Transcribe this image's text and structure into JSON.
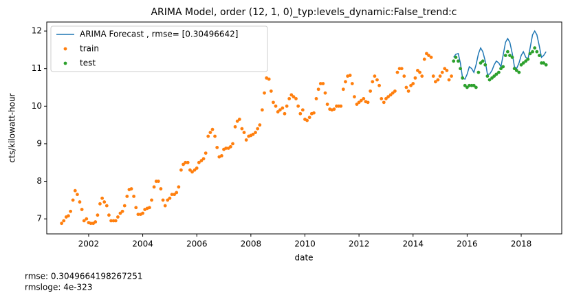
{
  "chart_data": {
    "type": "line",
    "title": "ARIMA Model, order (12, 1, 0)_typ:levels_dynamic:False_trend:c",
    "xlabel": "date",
    "ylabel": "cts/kilowatt-hour",
    "xlim": [
      2000.45,
      2019.5
    ],
    "ylim": [
      6.6,
      12.24
    ],
    "xticks": [
      2002,
      2004,
      2006,
      2008,
      2010,
      2012,
      2014,
      2016,
      2018
    ],
    "yticks": [
      7,
      8,
      9,
      10,
      11,
      12
    ],
    "legend": "upper left",
    "annotations": [
      "rmse: 0.3049664198267251",
      "rmsloge: 4e-323"
    ],
    "series": [
      {
        "name": "ARIMA Forecast , rmse= [0.30496642]",
        "color": "#1f77b4",
        "style": "line",
        "x": [
          2015.5,
          2015.58,
          2015.67,
          2015.75,
          2015.83,
          2015.92,
          2016.0,
          2016.08,
          2016.17,
          2016.25,
          2016.33,
          2016.42,
          2016.5,
          2016.58,
          2016.67,
          2016.75,
          2016.83,
          2016.92,
          2017.0,
          2017.08,
          2017.17,
          2017.25,
          2017.33,
          2017.42,
          2017.5,
          2017.58,
          2017.67,
          2017.75,
          2017.83,
          2017.92,
          2018.0,
          2018.08,
          2018.17,
          2018.25,
          2018.33,
          2018.42,
          2018.5,
          2018.58,
          2018.67,
          2018.75,
          2018.83,
          2018.92
        ],
        "values": [
          11.3,
          11.38,
          11.4,
          11.15,
          10.75,
          10.72,
          10.85,
          11.05,
          11.0,
          10.9,
          11.1,
          11.4,
          11.55,
          11.45,
          11.2,
          10.85,
          10.85,
          10.95,
          11.1,
          11.2,
          11.15,
          11.05,
          11.35,
          11.7,
          11.8,
          11.7,
          11.4,
          11.05,
          11.0,
          11.15,
          11.35,
          11.45,
          11.3,
          11.25,
          11.55,
          11.9,
          12.0,
          11.9,
          11.6,
          11.3,
          11.35,
          11.45
        ]
      },
      {
        "name": "train",
        "color": "#ff7f0e",
        "style": "points",
        "x": [
          2001.0,
          2001.08,
          2001.17,
          2001.25,
          2001.33,
          2001.42,
          2001.5,
          2001.58,
          2001.67,
          2001.75,
          2001.83,
          2001.92,
          2002.0,
          2002.08,
          2002.17,
          2002.25,
          2002.33,
          2002.42,
          2002.5,
          2002.58,
          2002.67,
          2002.75,
          2002.83,
          2002.92,
          2003.0,
          2003.08,
          2003.17,
          2003.25,
          2003.33,
          2003.42,
          2003.5,
          2003.58,
          2003.67,
          2003.75,
          2003.83,
          2003.92,
          2004.0,
          2004.08,
          2004.17,
          2004.25,
          2004.33,
          2004.42,
          2004.5,
          2004.58,
          2004.67,
          2004.75,
          2004.83,
          2004.92,
          2005.0,
          2005.08,
          2005.17,
          2005.25,
          2005.33,
          2005.42,
          2005.5,
          2005.58,
          2005.67,
          2005.75,
          2005.83,
          2005.92,
          2006.0,
          2006.08,
          2006.17,
          2006.25,
          2006.33,
          2006.42,
          2006.5,
          2006.58,
          2006.67,
          2006.75,
          2006.83,
          2006.92,
          2007.0,
          2007.08,
          2007.17,
          2007.25,
          2007.33,
          2007.42,
          2007.5,
          2007.58,
          2007.67,
          2007.75,
          2007.83,
          2007.92,
          2008.0,
          2008.08,
          2008.17,
          2008.25,
          2008.33,
          2008.42,
          2008.5,
          2008.58,
          2008.67,
          2008.75,
          2008.83,
          2008.92,
          2009.0,
          2009.08,
          2009.17,
          2009.25,
          2009.33,
          2009.42,
          2009.5,
          2009.58,
          2009.67,
          2009.75,
          2009.83,
          2009.92,
          2010.0,
          2010.08,
          2010.17,
          2010.25,
          2010.33,
          2010.42,
          2010.5,
          2010.58,
          2010.67,
          2010.75,
          2010.83,
          2010.92,
          2011.0,
          2011.08,
          2011.17,
          2011.25,
          2011.33,
          2011.42,
          2011.5,
          2011.58,
          2011.67,
          2011.75,
          2011.83,
          2011.92,
          2012.0,
          2012.08,
          2012.17,
          2012.25,
          2012.33,
          2012.42,
          2012.5,
          2012.58,
          2012.67,
          2012.75,
          2012.83,
          2012.92,
          2013.0,
          2013.08,
          2013.17,
          2013.25,
          2013.33,
          2013.42,
          2013.5,
          2013.58,
          2013.67,
          2013.75,
          2013.83,
          2013.92,
          2014.0,
          2014.08,
          2014.17,
          2014.25,
          2014.33,
          2014.42,
          2014.5,
          2014.58,
          2014.67,
          2014.75,
          2014.83,
          2014.92,
          2015.0,
          2015.08,
          2015.17,
          2015.25,
          2015.33,
          2015.42
        ],
        "values": [
          6.88,
          6.95,
          7.05,
          7.08,
          7.2,
          7.5,
          7.75,
          7.65,
          7.45,
          7.25,
          6.95,
          7.0,
          6.9,
          6.88,
          6.88,
          6.92,
          7.1,
          7.4,
          7.55,
          7.45,
          7.35,
          7.1,
          6.95,
          6.95,
          6.95,
          7.05,
          7.15,
          7.2,
          7.35,
          7.6,
          7.78,
          7.8,
          7.6,
          7.3,
          7.12,
          7.12,
          7.15,
          7.25,
          7.28,
          7.3,
          7.5,
          7.85,
          8.0,
          8.0,
          7.8,
          7.5,
          7.35,
          7.5,
          7.55,
          7.65,
          7.65,
          7.7,
          7.85,
          8.3,
          8.45,
          8.5,
          8.5,
          8.3,
          8.25,
          8.3,
          8.35,
          8.5,
          8.55,
          8.6,
          8.75,
          9.2,
          9.3,
          9.38,
          9.2,
          8.9,
          8.65,
          8.68,
          8.85,
          8.88,
          8.88,
          8.92,
          9.0,
          9.45,
          9.6,
          9.65,
          9.4,
          9.3,
          9.1,
          9.2,
          9.22,
          9.25,
          9.3,
          9.4,
          9.5,
          9.9,
          10.35,
          10.75,
          10.72,
          10.4,
          10.1,
          10.0,
          9.85,
          9.9,
          9.95,
          9.8,
          10.0,
          10.2,
          10.3,
          10.25,
          10.2,
          10.0,
          9.8,
          9.9,
          9.65,
          9.62,
          9.7,
          9.8,
          9.82,
          10.2,
          10.45,
          10.6,
          10.6,
          10.35,
          10.05,
          9.92,
          9.9,
          9.92,
          10.0,
          10.0,
          10.0,
          10.45,
          10.65,
          10.8,
          10.82,
          10.6,
          10.25,
          10.05,
          10.1,
          10.15,
          10.2,
          10.12,
          10.1,
          10.4,
          10.65,
          10.8,
          10.7,
          10.55,
          10.2,
          10.1,
          10.2,
          10.25,
          10.3,
          10.35,
          10.4,
          10.9,
          11.0,
          11.0,
          10.8,
          10.5,
          10.4,
          10.55,
          10.6,
          10.75,
          10.95,
          10.9,
          10.8,
          11.25,
          11.4,
          11.35,
          11.3,
          10.8,
          10.65,
          10.7,
          10.8,
          10.9,
          11.0,
          10.95,
          10.7,
          10.8
        ]
      },
      {
        "name": "test",
        "color": "#2ca02c",
        "style": "points",
        "x": [
          2015.5,
          2015.58,
          2015.67,
          2015.75,
          2015.83,
          2015.92,
          2016.0,
          2016.08,
          2016.17,
          2016.25,
          2016.33,
          2016.42,
          2016.5,
          2016.58,
          2016.67,
          2016.75,
          2016.83,
          2016.92,
          2017.0,
          2017.08,
          2017.17,
          2017.25,
          2017.33,
          2017.42,
          2017.5,
          2017.58,
          2017.67,
          2017.75,
          2017.83,
          2017.92,
          2018.0,
          2018.08,
          2018.17,
          2018.25,
          2018.33,
          2018.42,
          2018.5,
          2018.58,
          2018.67,
          2018.75,
          2018.83,
          2018.92
        ],
        "values": [
          11.2,
          11.3,
          11.2,
          11.0,
          10.75,
          10.55,
          10.5,
          10.55,
          10.55,
          10.55,
          10.5,
          10.9,
          11.15,
          11.2,
          11.1,
          10.8,
          10.7,
          10.75,
          10.8,
          10.85,
          10.9,
          11.0,
          11.05,
          11.35,
          11.45,
          11.35,
          11.3,
          11.0,
          10.95,
          10.9,
          11.1,
          11.15,
          11.2,
          11.25,
          11.4,
          11.45,
          11.55,
          11.45,
          11.35,
          11.15,
          11.15,
          11.1
        ]
      }
    ]
  }
}
